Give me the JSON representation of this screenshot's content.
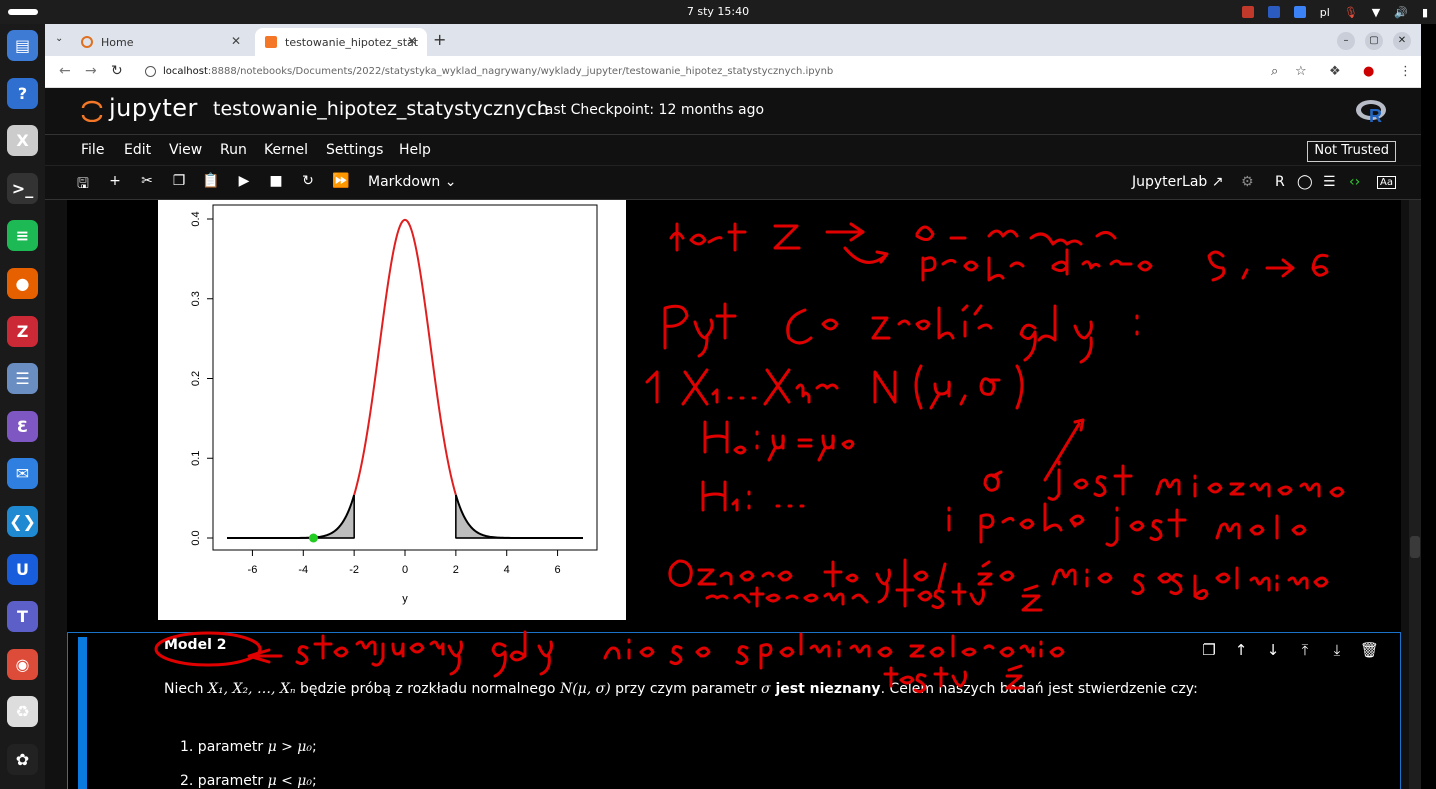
{
  "topbar": {
    "clock": "7 sty  15:40",
    "lang": "pl"
  },
  "dock": {
    "items": [
      {
        "name": "files",
        "glyph": "▤",
        "color": "#3d7bd4"
      },
      {
        "name": "help",
        "glyph": "?",
        "color": "#2f6fd0"
      },
      {
        "name": "xournal",
        "glyph": "X",
        "color": "#cccccc"
      },
      {
        "name": "terminal",
        "glyph": ">_",
        "color": "#333333"
      },
      {
        "name": "spotify",
        "glyph": "≡",
        "color": "#1db954"
      },
      {
        "name": "firefox",
        "glyph": "●",
        "color": "#e66000"
      },
      {
        "name": "zotero",
        "glyph": "Z",
        "color": "#cc2936"
      },
      {
        "name": "document-viewer",
        "glyph": "☰",
        "color": "#6a8ec2"
      },
      {
        "name": "emacs",
        "glyph": "Ɛ",
        "color": "#7e57c2"
      },
      {
        "name": "thunderbird",
        "glyph": "✉",
        "color": "#2f7fe0"
      },
      {
        "name": "vscode",
        "glyph": "❮❯",
        "color": "#1f8ad2"
      },
      {
        "name": "bitwarden",
        "glyph": "U",
        "color": "#175ddc"
      },
      {
        "name": "teams",
        "glyph": "T",
        "color": "#5b5fc7"
      },
      {
        "name": "chrome",
        "glyph": "◉",
        "color": "#dd4b39"
      },
      {
        "name": "trash",
        "glyph": "♻",
        "color": "#dddddd"
      },
      {
        "name": "ubuntu",
        "glyph": "✿",
        "color": "#222222"
      }
    ]
  },
  "browser": {
    "tabs": [
      {
        "label": "Home"
      },
      {
        "label": "testowanie_hipotez_stat"
      }
    ],
    "url_host": "localhost",
    "url_path": ":8888/notebooks/Documents/2022/statystyka_wyklad_nagrywany/wyklady_jupyter/testowanie_hipotez_statystycznych.ipynb"
  },
  "jupyter": {
    "logo_text": "jupyter",
    "title": "testowanie_hipotez_statystycznych",
    "checkpoint": "Last Checkpoint: 12 months ago",
    "menu": [
      "File",
      "Edit",
      "View",
      "Run",
      "Kernel",
      "Settings",
      "Help"
    ],
    "trust": "Not Trusted",
    "cell_type": "Markdown",
    "jupyterlab_link": "JupyterLab",
    "kernel": "R"
  },
  "chart_data": {
    "type": "line",
    "title": "",
    "xlabel": "y",
    "ylabel": "",
    "xlim": [
      -7,
      7
    ],
    "ylim": [
      0,
      0.4
    ],
    "xticks": [
      "-6",
      "-4",
      "-2",
      "0",
      "2",
      "4",
      "6"
    ],
    "yticks": [
      "0.0",
      "0.1",
      "0.2",
      "0.3",
      "0.4"
    ],
    "series": [
      {
        "description": "standard normal density, red between -2 and 2, black tails",
        "mean": 0,
        "sd": 1
      }
    ],
    "shaded_regions": [
      [
        -7,
        -2
      ],
      [
        2,
        7
      ]
    ],
    "points": [
      {
        "x": -3.6,
        "y": 0.0,
        "color": "#22cc22"
      }
    ],
    "grid": false
  },
  "cell": {
    "model_label": "Model 2",
    "text_intro": "Niech ",
    "text_sample": "X₁, X₂, …, Xₙ",
    "text_mid": " będzie próbą z rozkładu normalnego ",
    "text_dist": "N(μ, σ)",
    "text_mid2": " przy czym parametr ",
    "text_sigma": "σ",
    "text_bold": " jest nieznany",
    "text_end": ". Celem naszych badań jest stwierdzenie czy:",
    "items": [
      {
        "num": "1. parametr ",
        "math": "μ > μ₀",
        "end": ";"
      },
      {
        "num": "2. parametr ",
        "math": "μ < μ₀",
        "end": ";"
      }
    ]
  }
}
